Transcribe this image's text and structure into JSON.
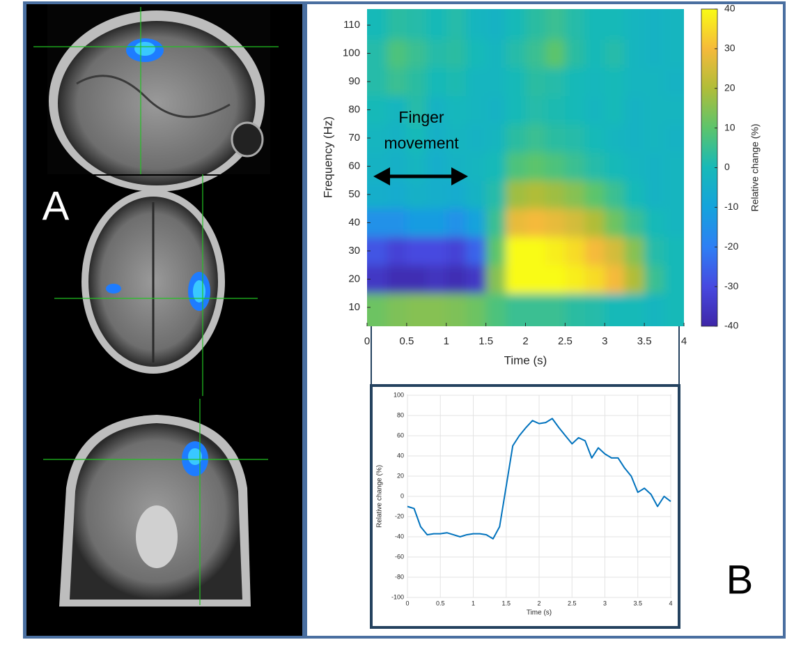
{
  "labels": {
    "a": "A",
    "b": "B"
  },
  "chart_data": [
    {
      "type": "heatmap",
      "xlabel": "Time (s)",
      "ylabel": "Frequency (Hz)",
      "colorbar_label": "Relative change (%)",
      "annotation": [
        "Finger",
        "movement"
      ],
      "x": [
        0.125,
        0.375,
        0.625,
        0.875,
        1.125,
        1.375,
        1.625,
        1.875,
        2.125,
        2.375,
        2.625,
        2.875,
        3.125,
        3.375,
        3.625,
        3.875
      ],
      "y": [
        10,
        20,
        30,
        40,
        50,
        60,
        70,
        80,
        90,
        100,
        110
      ],
      "values": [
        [
          12,
          14,
          15,
          15,
          14,
          12,
          8,
          5,
          5,
          5,
          3,
          2,
          0,
          0,
          -2,
          0
        ],
        [
          -35,
          -38,
          -38,
          -36,
          -38,
          -35,
          15,
          40,
          40,
          40,
          38,
          35,
          30,
          20,
          5,
          0
        ],
        [
          -28,
          -32,
          -30,
          -30,
          -32,
          -25,
          10,
          40,
          40,
          38,
          35,
          30,
          25,
          15,
          2,
          0
        ],
        [
          -15,
          -15,
          -12,
          -12,
          -15,
          -10,
          5,
          28,
          30,
          28,
          25,
          20,
          12,
          5,
          0,
          -2
        ],
        [
          -5,
          -6,
          -4,
          -5,
          -6,
          -3,
          2,
          18,
          20,
          18,
          15,
          10,
          5,
          0,
          -3,
          -2
        ],
        [
          -3,
          -4,
          -2,
          -5,
          -3,
          -2,
          0,
          8,
          10,
          8,
          5,
          2,
          0,
          -2,
          -3,
          -2
        ],
        [
          -2,
          -3,
          0,
          -4,
          -2,
          -3,
          -2,
          3,
          5,
          3,
          2,
          0,
          -2,
          -3,
          -2,
          -3
        ],
        [
          0,
          -2,
          2,
          -3,
          -1,
          -2,
          -3,
          0,
          2,
          1,
          0,
          -2,
          0,
          -3,
          -2,
          -2
        ],
        [
          2,
          5,
          3,
          0,
          1,
          -2,
          -2,
          0,
          3,
          2,
          0,
          -1,
          0,
          -2,
          -2,
          -3
        ],
        [
          2,
          8,
          5,
          2,
          3,
          0,
          -2,
          2,
          5,
          10,
          3,
          0,
          2,
          -2,
          -3,
          -2
        ],
        [
          0,
          3,
          2,
          0,
          2,
          -2,
          -3,
          0,
          3,
          5,
          2,
          0,
          0,
          -2,
          -3,
          -2
        ]
      ],
      "xlim": [
        0,
        4
      ],
      "xticks": [
        0,
        0.5,
        1,
        1.5,
        2,
        2.5,
        3,
        3.5,
        4
      ],
      "ylim": [
        3.3,
        115.7
      ],
      "yticks": [
        10,
        20,
        30,
        40,
        50,
        60,
        70,
        80,
        90,
        100,
        110
      ],
      "clim": [
        -40,
        40
      ],
      "cticks": [
        -40,
        -30,
        -20,
        -10,
        0,
        10,
        20,
        30,
        40
      ],
      "colormap": [
        "#3e26a8",
        "#4749e0",
        "#2e7ff4",
        "#14a3dc",
        "#17b9b8",
        "#5cc46c",
        "#b0bd39",
        "#f5ba3a",
        "#f9fb15"
      ]
    },
    {
      "type": "line",
      "xlabel": "Time (s)",
      "ylabel": "Relative change (%)",
      "x": [
        0,
        0.1,
        0.2,
        0.3,
        0.4,
        0.5,
        0.6,
        0.7,
        0.8,
        0.9,
        1,
        1.1,
        1.2,
        1.3,
        1.4,
        1.5,
        1.6,
        1.7,
        1.8,
        1.9,
        2,
        2.1,
        2.2,
        2.3,
        2.4,
        2.5,
        2.6,
        2.7,
        2.8,
        2.9,
        3,
        3.1,
        3.2,
        3.3,
        3.4,
        3.5,
        3.6,
        3.7,
        3.8,
        3.9,
        4
      ],
      "values": [
        -10,
        -12,
        -30,
        -38,
        -37,
        -37,
        -36,
        -38,
        -40,
        -38,
        -37,
        -37,
        -38,
        -42,
        -30,
        10,
        50,
        60,
        68,
        75,
        72,
        73,
        77,
        68,
        60,
        52,
        58,
        55,
        38,
        48,
        42,
        38,
        38,
        28,
        20,
        4,
        8,
        2,
        -10,
        0,
        -5
      ],
      "color": "#0072bd",
      "xlim": [
        0,
        4
      ],
      "xticks": [
        0,
        0.5,
        1,
        1.5,
        2,
        2.5,
        3,
        3.5,
        4
      ],
      "ylim": [
        -100,
        100
      ],
      "yticks": [
        -100,
        -80,
        -60,
        -40,
        -20,
        0,
        20,
        40,
        60,
        80,
        100
      ],
      "grid": true
    }
  ]
}
